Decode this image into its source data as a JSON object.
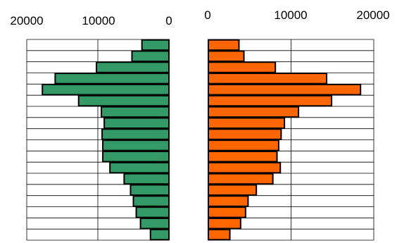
{
  "colors": {
    "left_bar": "#339966",
    "right_bar": "#ff6600",
    "bar_outline": "#000000",
    "grid": "#000000"
  },
  "chart_data": [
    {
      "type": "bar",
      "orientation": "horizontal",
      "x_direction": "reversed",
      "xlim": [
        0,
        20000
      ],
      "tick_labels": [
        "20000",
        "10000",
        "0"
      ],
      "grid": true,
      "values": [
        3800,
        5200,
        10200,
        16000,
        17800,
        12700,
        9500,
        9100,
        9400,
        9300,
        9300,
        8300,
        6300,
        5400,
        5000,
        4600,
        4000,
        2600
      ]
    },
    {
      "type": "bar",
      "orientation": "horizontal",
      "xlim": [
        0,
        20000
      ],
      "tick_labels": [
        "0",
        "10000",
        "20000"
      ],
      "grid": true,
      "values": [
        3700,
        4300,
        8100,
        14300,
        18400,
        14900,
        10900,
        9200,
        8800,
        8500,
        8300,
        8700,
        7800,
        5800,
        4800,
        4500,
        3900,
        2600
      ]
    }
  ]
}
